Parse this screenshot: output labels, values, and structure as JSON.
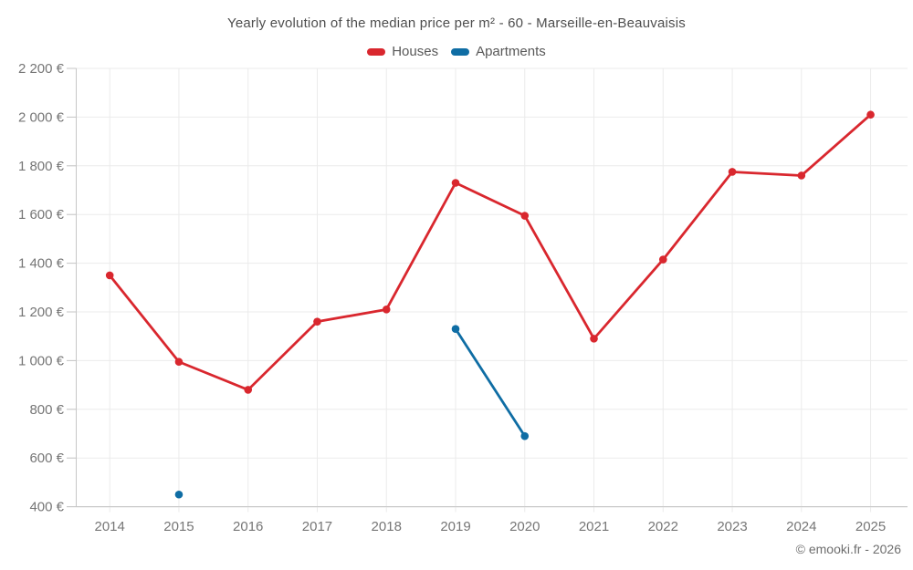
{
  "title": "Yearly evolution of the median price per m² - 60 - Marseille-en-Beauvaisis",
  "footer": "© emooki.fr - 2026",
  "colors": {
    "houses": "#d9272e",
    "apartments": "#0f6da4",
    "grid": "#ebebeb",
    "axis": "#c6c6c6",
    "tick_label": "#767676",
    "title_text": "#4e4e4e"
  },
  "legend": {
    "items": [
      {
        "label": "Houses",
        "color": "#d9272e"
      },
      {
        "label": "Apartments",
        "color": "#0f6da4"
      }
    ]
  },
  "chart_data": {
    "type": "line",
    "x": [
      2014,
      2015,
      2016,
      2017,
      2018,
      2019,
      2020,
      2021,
      2022,
      2023,
      2024,
      2025
    ],
    "series": [
      {
        "name": "Houses",
        "color": "#d9272e",
        "values": [
          1350,
          995,
          880,
          1160,
          1210,
          1730,
          1595,
          1090,
          1415,
          1775,
          1760,
          2010
        ]
      },
      {
        "name": "Apartments",
        "color": "#0f6da4",
        "values": [
          null,
          450,
          null,
          null,
          null,
          1130,
          690,
          null,
          null,
          null,
          null,
          null
        ]
      }
    ],
    "title": "Yearly evolution of the median price per m² - 60 - Marseille-en-Beauvaisis",
    "xlabel": "",
    "ylabel": "",
    "ylim": [
      400,
      2200
    ],
    "ytick_step": 200,
    "ytick_suffix": " €",
    "grid": true,
    "legend_position": "top"
  }
}
